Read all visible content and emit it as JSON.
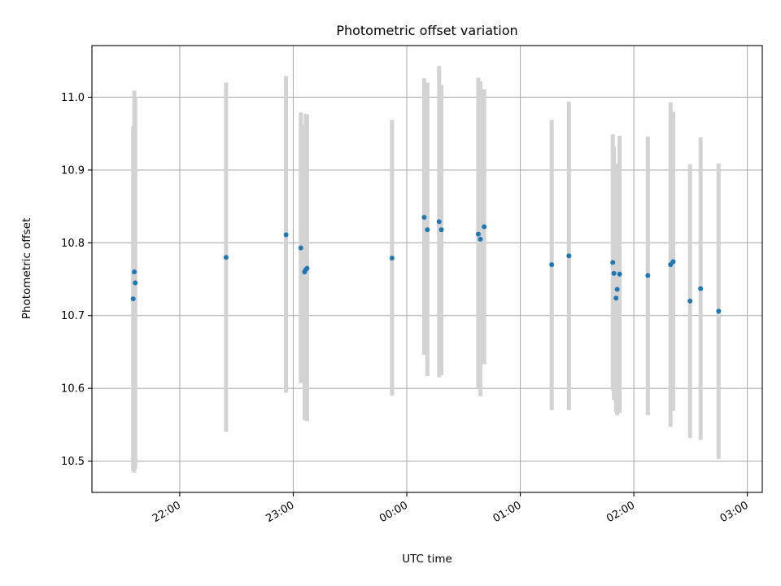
{
  "chart_data": {
    "type": "scatter",
    "title": "Photometric offset variation",
    "xlabel": "UTC time",
    "ylabel": "Photometric offset",
    "xlim_minutes": [
      1273.6,
      1627.9
    ],
    "ylim": [
      10.457,
      11.071
    ],
    "grid": true,
    "legend": "none",
    "x_ticks": [
      {
        "minute": 1320,
        "label": "22:00"
      },
      {
        "minute": 1380,
        "label": "23:00"
      },
      {
        "minute": 1440,
        "label": "00:00"
      },
      {
        "minute": 1500,
        "label": "01:00"
      },
      {
        "minute": 1560,
        "label": "02:00"
      },
      {
        "minute": 1620,
        "label": "03:00"
      }
    ],
    "y_ticks": [
      {
        "value": 10.5,
        "label": "10.5"
      },
      {
        "value": 10.6,
        "label": "10.6"
      },
      {
        "value": 10.7,
        "label": "10.7"
      },
      {
        "value": 10.8,
        "label": "10.8"
      },
      {
        "value": 10.9,
        "label": "10.9"
      },
      {
        "value": 11.0,
        "label": "11.0"
      }
    ],
    "colors": {
      "points": "#1f77b4",
      "errorbars": "#d3d3d3"
    },
    "points": [
      {
        "time": "21:35",
        "minute": 1295.4,
        "y": 10.723,
        "low": 10.486,
        "high": 10.96
      },
      {
        "time": "21:35",
        "minute": 1296.0,
        "y": 10.76,
        "low": 10.484,
        "high": 11.009
      },
      {
        "time": "21:35",
        "minute": 1296.5,
        "y": 10.745,
        "low": 10.49,
        "high": 11.001
      },
      {
        "time": "22:24",
        "minute": 1344.5,
        "y": 10.78,
        "low": 10.54,
        "high": 11.02
      },
      {
        "time": "22:56",
        "minute": 1376.2,
        "y": 10.811,
        "low": 10.594,
        "high": 11.029
      },
      {
        "time": "23:04",
        "minute": 1384.0,
        "y": 10.793,
        "low": 10.607,
        "high": 10.979
      },
      {
        "time": "23:06",
        "minute": 1386.0,
        "y": 10.76,
        "low": 10.557,
        "high": 10.962
      },
      {
        "time": "23:06",
        "minute": 1386.6,
        "y": 10.763,
        "low": 10.556,
        "high": 10.977
      },
      {
        "time": "23:07",
        "minute": 1387.3,
        "y": 10.765,
        "low": 10.555,
        "high": 10.976
      },
      {
        "time": "23:52",
        "minute": 1432.2,
        "y": 10.779,
        "low": 10.59,
        "high": 10.969
      },
      {
        "time": "00:09",
        "minute": 1449.2,
        "y": 10.835,
        "low": 10.646,
        "high": 11.026
      },
      {
        "time": "00:11",
        "minute": 1450.9,
        "y": 10.818,
        "low": 10.617,
        "high": 11.02
      },
      {
        "time": "00:17",
        "minute": 1457.1,
        "y": 10.829,
        "low": 10.615,
        "high": 11.043
      },
      {
        "time": "00:18",
        "minute": 1458.3,
        "y": 10.818,
        "low": 10.618,
        "high": 11.017
      },
      {
        "time": "00:37",
        "minute": 1477.8,
        "y": 10.812,
        "low": 10.6,
        "high": 11.027
      },
      {
        "time": "00:38",
        "minute": 1478.9,
        "y": 10.805,
        "low": 10.589,
        "high": 11.022
      },
      {
        "time": "00:40",
        "minute": 1480.9,
        "y": 10.822,
        "low": 10.633,
        "high": 11.011
      },
      {
        "time": "01:16",
        "minute": 1516.6,
        "y": 10.77,
        "low": 10.57,
        "high": 10.969
      },
      {
        "time": "01:25",
        "minute": 1525.7,
        "y": 10.782,
        "low": 10.57,
        "high": 10.994
      },
      {
        "time": "01:48",
        "minute": 1548.9,
        "y": 10.773,
        "low": 10.597,
        "high": 10.949
      },
      {
        "time": "01:48",
        "minute": 1549.5,
        "y": 10.758,
        "low": 10.584,
        "high": 10.932
      },
      {
        "time": "01:50",
        "minute": 1550.6,
        "y": 10.724,
        "low": 10.567,
        "high": 10.881
      },
      {
        "time": "01:51",
        "minute": 1551.2,
        "y": 10.736,
        "low": 10.563,
        "high": 10.909
      },
      {
        "time": "01:52",
        "minute": 1552.5,
        "y": 10.757,
        "low": 10.566,
        "high": 10.947
      },
      {
        "time": "02:07",
        "minute": 1567.4,
        "y": 10.755,
        "low": 10.563,
        "high": 10.946
      },
      {
        "time": "02:19",
        "minute": 1579.4,
        "y": 10.77,
        "low": 10.547,
        "high": 10.993
      },
      {
        "time": "02:21",
        "minute": 1580.8,
        "y": 10.774,
        "low": 10.569,
        "high": 10.98
      },
      {
        "time": "02:30",
        "minute": 1589.7,
        "y": 10.72,
        "low": 10.532,
        "high": 10.908
      },
      {
        "time": "02:35",
        "minute": 1595.3,
        "y": 10.737,
        "low": 10.529,
        "high": 10.945
      },
      {
        "time": "02:44",
        "minute": 1604.8,
        "y": 10.706,
        "low": 10.503,
        "high": 10.909
      }
    ]
  }
}
